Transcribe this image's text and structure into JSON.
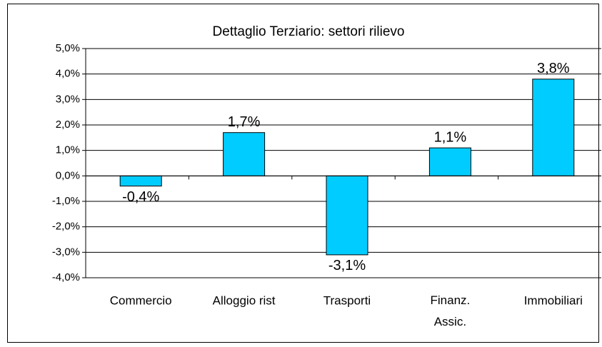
{
  "chart_data": {
    "type": "bar",
    "title": "Dettaglio Terziario: settori rilievo",
    "categories": [
      "Commercio",
      "Alloggio rist",
      "Trasporti",
      "Finanz. Assic.",
      "Immobiliari"
    ],
    "values": [
      -0.4,
      1.7,
      -3.1,
      1.1,
      3.8
    ],
    "value_labels": [
      "-0,4%",
      "1,7%",
      "-3,1%",
      "1,1%",
      "3,8%"
    ],
    "color": "#00ccff",
    "ylim": [
      -4,
      5
    ],
    "yticks": [
      {
        "value": -4,
        "label": "-4,0%"
      },
      {
        "value": -3,
        "label": "-3,0%"
      },
      {
        "value": -2,
        "label": "-2,0%"
      },
      {
        "value": -1,
        "label": "-1,0%"
      },
      {
        "value": 0,
        "label": "0,0%"
      },
      {
        "value": 1,
        "label": "1,0%"
      },
      {
        "value": 2,
        "label": "2,0%"
      },
      {
        "value": 3,
        "label": "3,0%"
      },
      {
        "value": 4,
        "label": "4,0%"
      },
      {
        "value": 5,
        "label": "5,0%"
      }
    ],
    "grid": true
  }
}
